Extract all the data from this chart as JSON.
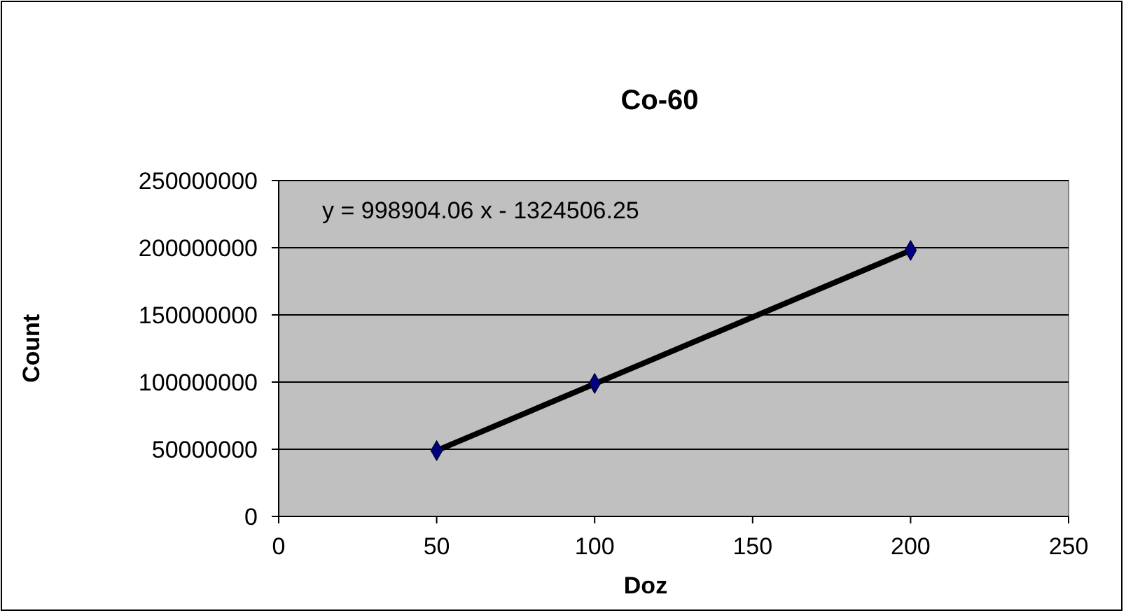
{
  "chart_data": {
    "type": "scatter",
    "title": "Co-60",
    "xlabel": "Doz",
    "ylabel": "Count",
    "annotations": [
      "y = 998904.06 x - 1324506.25"
    ],
    "xlim": [
      0,
      250
    ],
    "xticks": [
      0,
      50,
      100,
      150,
      200,
      250
    ],
    "ylim": [
      0,
      250000000
    ],
    "yticks": [
      0,
      50000000,
      100000000,
      150000000,
      200000000,
      250000000
    ],
    "grid": "y",
    "series": [
      {
        "type": "line",
        "color": "#000000",
        "x": [
          50,
          200
        ],
        "values": [
          49000000,
          198000000
        ],
        "marker": "none",
        "line_style": "solid"
      },
      {
        "color": "#000080",
        "x": [
          50,
          100,
          200
        ],
        "values": [
          49000000,
          99000000,
          198000000
        ],
        "marker": "diamond"
      }
    ]
  }
}
